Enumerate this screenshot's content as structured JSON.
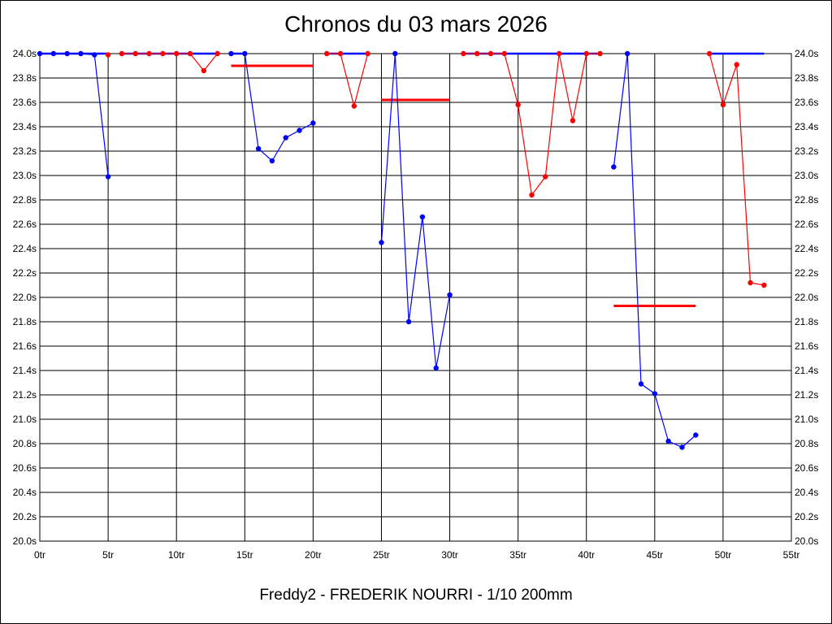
{
  "header": {
    "title": "Chronos du 03 mars 2026"
  },
  "footer": {
    "caption": "Freddy2 - FREDERIK NOURRI - 1/10 200mm"
  },
  "chart_data": {
    "type": "line",
    "title": "Chronos du 03 mars 2026",
    "xlabel": "",
    "ylabel": "",
    "xlim": [
      0,
      55
    ],
    "ylim": [
      20.0,
      24.0
    ],
    "grid": true,
    "x_ticks": [
      "0tr",
      "5tr",
      "10tr",
      "15tr",
      "20tr",
      "25tr",
      "30tr",
      "35tr",
      "40tr",
      "45tr",
      "50tr",
      "55tr"
    ],
    "y_ticks": [
      "20.0s",
      "20.2s",
      "20.4s",
      "20.6s",
      "20.8s",
      "21.0s",
      "21.2s",
      "21.4s",
      "21.6s",
      "21.8s",
      "22.0s",
      "22.2s",
      "22.4s",
      "22.6s",
      "22.8s",
      "23.0s",
      "23.2s",
      "23.4s",
      "23.6s",
      "23.8s",
      "24.0s"
    ],
    "colors": {
      "blue": "#0000ff",
      "red": "#ff0000"
    },
    "segments": [
      {
        "color": "blue",
        "points": [
          [
            0,
            24.0
          ],
          [
            1,
            24.0
          ],
          [
            2,
            24.0
          ],
          [
            3,
            24.0
          ],
          [
            4,
            23.99
          ],
          [
            5,
            22.99
          ]
        ]
      },
      {
        "color": "red",
        "points": [
          [
            5,
            23.99
          ]
        ]
      },
      {
        "color": "red",
        "points": [
          [
            6,
            24.0
          ],
          [
            7,
            24.0
          ],
          [
            8,
            24.0
          ],
          [
            9,
            24.0
          ],
          [
            10,
            24.0
          ],
          [
            11,
            24.0
          ],
          [
            12,
            23.86
          ],
          [
            13,
            24.0
          ]
        ]
      },
      {
        "color": "blue",
        "points": [
          [
            14,
            24.0
          ],
          [
            15,
            24.0
          ],
          [
            16,
            23.22
          ],
          [
            17,
            23.12
          ],
          [
            18,
            23.31
          ],
          [
            19,
            23.37
          ],
          [
            20,
            23.43
          ]
        ]
      },
      {
        "color": "red",
        "points": [
          [
            21,
            24.0
          ],
          [
            22,
            24.0
          ],
          [
            23,
            23.57
          ],
          [
            24,
            24.0
          ]
        ]
      },
      {
        "color": "blue",
        "points": [
          [
            25,
            22.45
          ],
          [
            26,
            24.0
          ],
          [
            27,
            21.8
          ],
          [
            28,
            22.66
          ],
          [
            29,
            21.42
          ],
          [
            30,
            22.02
          ]
        ]
      },
      {
        "color": "red",
        "points": [
          [
            31,
            24.0
          ],
          [
            32,
            24.0
          ],
          [
            33,
            24.0
          ],
          [
            34,
            24.0
          ],
          [
            35,
            23.58
          ],
          [
            36,
            22.84
          ],
          [
            37,
            22.99
          ],
          [
            38,
            24.0
          ],
          [
            39,
            23.45
          ],
          [
            40,
            24.0
          ],
          [
            41,
            24.0
          ]
        ]
      },
      {
        "color": "blue",
        "points": [
          [
            42,
            23.07
          ],
          [
            43,
            24.0
          ],
          [
            44,
            21.29
          ],
          [
            45,
            21.21
          ],
          [
            46,
            20.82
          ],
          [
            47,
            20.77
          ],
          [
            48,
            20.87
          ]
        ]
      },
      {
        "color": "red",
        "points": [
          [
            49,
            24.0
          ],
          [
            50,
            23.58
          ],
          [
            51,
            23.91
          ],
          [
            52,
            22.12
          ],
          [
            53,
            22.1
          ]
        ]
      }
    ],
    "blue_caps": [
      {
        "from": 0,
        "to": 5,
        "value": 24.0
      },
      {
        "from": 6,
        "to": 13,
        "value": 24.0
      },
      {
        "from": 14,
        "to": 15,
        "value": 24.0
      },
      {
        "from": 21,
        "to": 24,
        "value": 24.0
      },
      {
        "from": 31,
        "to": 41,
        "value": 24.0
      },
      {
        "from": 49,
        "to": 53,
        "value": 24.0
      }
    ],
    "averages": [
      {
        "from": 14,
        "to": 20,
        "value": 23.9
      },
      {
        "from": 25,
        "to": 30,
        "value": 23.62
      },
      {
        "from": 42,
        "to": 48,
        "value": 21.93
      }
    ]
  }
}
